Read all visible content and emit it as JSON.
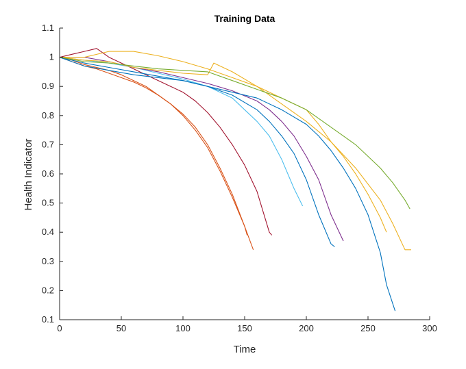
{
  "chart_data": {
    "type": "line",
    "title": "Training Data",
    "xlabel": "Time",
    "ylabel": "Health Indicator",
    "xlim": [
      0,
      300
    ],
    "ylim": [
      0.1,
      1.1
    ],
    "xticks": [
      0,
      50,
      100,
      150,
      200,
      250,
      300
    ],
    "xtick_labels": [
      "0",
      "50",
      "100",
      "150",
      "200",
      "250",
      "300"
    ],
    "yticks": [
      0.1,
      0.2,
      0.3,
      0.4,
      0.5,
      0.6,
      0.7,
      0.8,
      0.9,
      1.0,
      1.1
    ],
    "ytick_labels": [
      "0.1",
      "0.2",
      "0.3",
      "0.4",
      "0.5",
      "0.6",
      "0.7",
      "0.8",
      "0.9",
      "1",
      "1.1"
    ],
    "grid": false,
    "legend": "none",
    "series": [
      {
        "color": "#D95319",
        "x": [
          0,
          10,
          20,
          30,
          40,
          50,
          60,
          70,
          80,
          90,
          100,
          110,
          120,
          130,
          140,
          150,
          157
        ],
        "y": [
          1.0,
          0.99,
          0.975,
          0.965,
          0.955,
          0.94,
          0.92,
          0.9,
          0.87,
          0.84,
          0.8,
          0.75,
          0.69,
          0.61,
          0.52,
          0.42,
          0.34
        ]
      },
      {
        "color": "#D95319",
        "x": [
          0,
          10,
          20,
          30,
          40,
          50,
          60,
          70,
          80,
          90,
          100,
          110,
          120,
          130,
          140,
          150,
          152
        ],
        "y": [
          1.0,
          0.985,
          0.97,
          0.96,
          0.945,
          0.93,
          0.915,
          0.895,
          0.87,
          0.84,
          0.805,
          0.76,
          0.7,
          0.62,
          0.53,
          0.42,
          0.39
        ]
      },
      {
        "color": "#A2142F",
        "x": [
          0,
          10,
          20,
          30,
          40,
          50,
          60,
          70,
          80,
          90,
          100,
          110,
          120,
          130,
          140,
          150,
          160,
          170,
          172
        ],
        "y": [
          1.0,
          1.01,
          1.02,
          1.03,
          1.0,
          0.98,
          0.96,
          0.94,
          0.92,
          0.9,
          0.88,
          0.85,
          0.81,
          0.76,
          0.7,
          0.63,
          0.54,
          0.4,
          0.39
        ]
      },
      {
        "color": "#4DBEEE",
        "x": [
          0,
          20,
          40,
          60,
          80,
          100,
          120,
          140,
          150,
          160,
          170,
          180,
          190,
          197
        ],
        "y": [
          1.0,
          0.99,
          0.98,
          0.965,
          0.945,
          0.925,
          0.9,
          0.86,
          0.82,
          0.78,
          0.73,
          0.65,
          0.55,
          0.49
        ]
      },
      {
        "color": "#0072BD",
        "x": [
          0,
          20,
          40,
          60,
          80,
          100,
          120,
          140,
          160,
          170,
          180,
          190,
          200,
          210,
          220,
          223
        ],
        "y": [
          1.0,
          0.98,
          0.965,
          0.95,
          0.935,
          0.92,
          0.9,
          0.87,
          0.82,
          0.78,
          0.73,
          0.67,
          0.58,
          0.46,
          0.36,
          0.35
        ]
      },
      {
        "color": "#7E2F8E",
        "x": [
          0,
          20,
          40,
          60,
          80,
          100,
          120,
          140,
          160,
          170,
          180,
          190,
          200,
          210,
          220,
          230
        ],
        "y": [
          1.0,
          1.0,
          0.985,
          0.965,
          0.95,
          0.93,
          0.91,
          0.885,
          0.85,
          0.82,
          0.78,
          0.73,
          0.66,
          0.58,
          0.46,
          0.37
        ]
      },
      {
        "color": "#0072BD",
        "x": [
          0,
          20,
          40,
          60,
          80,
          100,
          120,
          140,
          160,
          180,
          200,
          210,
          220,
          230,
          240,
          250,
          260,
          265,
          272
        ],
        "y": [
          1.0,
          0.97,
          0.955,
          0.94,
          0.93,
          0.92,
          0.9,
          0.88,
          0.86,
          0.82,
          0.77,
          0.73,
          0.68,
          0.62,
          0.55,
          0.46,
          0.33,
          0.22,
          0.13
        ]
      },
      {
        "color": "#EDB120",
        "x": [
          0,
          20,
          40,
          60,
          80,
          100,
          120,
          125,
          140,
          160,
          180,
          200,
          220,
          240,
          260,
          270,
          280,
          285
        ],
        "y": [
          1.0,
          0.99,
          0.985,
          0.965,
          0.955,
          0.945,
          0.94,
          0.98,
          0.95,
          0.9,
          0.84,
          0.78,
          0.71,
          0.62,
          0.51,
          0.43,
          0.34,
          0.34
        ]
      },
      {
        "color": "#EDB120",
        "x": [
          0,
          20,
          40,
          60,
          80,
          100,
          120,
          140,
          160,
          180,
          200,
          210,
          220,
          230,
          240,
          250,
          260,
          265
        ],
        "y": [
          1.0,
          1.0,
          1.02,
          1.02,
          1.005,
          0.985,
          0.96,
          0.93,
          0.9,
          0.86,
          0.82,
          0.77,
          0.71,
          0.66,
          0.6,
          0.53,
          0.45,
          0.4
        ]
      },
      {
        "color": "#77AC30",
        "x": [
          0,
          20,
          40,
          60,
          80,
          100,
          120,
          140,
          160,
          180,
          200,
          210,
          220,
          230,
          240,
          250,
          260,
          270,
          280,
          284
        ],
        "y": [
          1.0,
          0.985,
          0.98,
          0.97,
          0.96,
          0.955,
          0.95,
          0.92,
          0.89,
          0.86,
          0.82,
          0.79,
          0.76,
          0.73,
          0.7,
          0.66,
          0.62,
          0.57,
          0.51,
          0.48
        ]
      }
    ]
  }
}
